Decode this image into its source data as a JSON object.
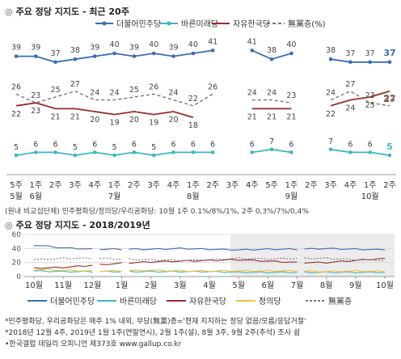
{
  "top": {
    "title_mark": "◎",
    "title": "주요 정당 지지도 - 최근 20주",
    "note": "(원내 비교섭단체) 민주평화당/정의당/우리공화당: 10월 1주 0.1%/8%/1%, 2주 0,3%/7%/0,4%",
    "x_week": [
      "5주",
      "1주",
      "2주",
      "3주",
      "4주",
      "1주",
      "2주",
      "3주",
      "4주",
      "1주",
      "2주",
      "3주",
      "4주",
      "5주",
      "1주",
      "2주",
      "3주",
      "4주",
      "1주",
      "2주"
    ],
    "x_month": [
      "5월",
      "6월",
      "",
      "",
      "",
      "7월",
      "",
      "",
      "",
      "8월",
      "",
      "",
      "",
      "",
      "9월",
      "",
      "",
      "",
      "10월",
      ""
    ]
  },
  "bottom": {
    "title_mark": "◎",
    "title": "주요 정당 지지도 - 2018/2019년",
    "y_ticks": [
      "0",
      "20",
      "40",
      "60"
    ],
    "x_ticks": [
      "10월",
      "11월",
      "12월",
      "1월",
      "2월",
      "3월",
      "4월",
      "5월",
      "6월",
      "7월",
      "8월",
      "9월",
      "10월"
    ],
    "legend": [
      "더불어민주당",
      "바른미래당",
      "자유한국당",
      "정의당",
      "無黨층"
    ]
  },
  "footnotes": [
    "*민주평화당, 우리공화당은 매주 1% 내외, 무당(無黨)층='현재 지지하는 정당 없음/모름/응답거절'",
    "*2018년 12월 4주, 2019년 1월 1주(연말연시), 2월 1주(설), 8월 3주, 9월 2주(추석) 조사 쉼",
    "•한국갤럽 데일리 오피니언 제373호 www.gallup.co.kr"
  ],
  "colors": {
    "democratic": "#3a6db3",
    "bareun": "#3fb6c2",
    "liberty": "#9c2b2b",
    "justice": "#f0c239",
    "none": "#777777"
  },
  "chart_data": [
    {
      "type": "line",
      "title": "주요 정당 지지도 - 최근 20주",
      "categories": [
        "5월 5주",
        "6월 1주",
        "2주",
        "3주",
        "4주",
        "7월 1주",
        "2주",
        "3주",
        "4주",
        "8월 1주",
        "2주",
        "3주",
        "4주",
        "5주",
        "9월 1주",
        "2주",
        "3주",
        "4주",
        "10월 1주",
        "2주"
      ],
      "ylim": [
        0,
        50
      ],
      "legend_position": "top-right",
      "series": [
        {
          "name": "더불어민주당",
          "values": [
            39,
            39,
            37,
            38,
            39,
            40,
            39,
            40,
            39,
            40,
            41,
            null,
            41,
            38,
            40,
            null,
            38,
            37,
            37,
            37
          ],
          "labels": [
            "39",
            "39",
            "37",
            "38",
            "39",
            "40",
            "39",
            "40",
            "39",
            "40",
            "41",
            "",
            "41",
            "38",
            "40",
            "",
            "38",
            "37",
            "37",
            "37"
          ]
        },
        {
          "name": "바른미래당",
          "values": [
            5,
            6,
            6,
            5,
            6,
            5,
            6,
            5,
            6,
            6,
            6,
            null,
            6,
            7,
            6,
            null,
            7,
            6,
            6,
            5
          ],
          "labels": [
            "5",
            "6",
            "6",
            "5",
            "6",
            "5",
            "6",
            "5",
            "6",
            "6",
            "6",
            "",
            "6",
            "7",
            "6",
            "",
            "7",
            "6",
            "6",
            "5"
          ]
        },
        {
          "name": "자유한국당",
          "values": [
            22,
            23,
            21,
            21,
            20,
            19,
            20,
            19,
            20,
            18,
            null,
            null,
            21,
            21,
            21,
            null,
            22,
            24,
            25,
            27
          ],
          "labels": [
            "22",
            "23",
            "21",
            "21",
            "20",
            "19",
            "20",
            "19",
            "20",
            "18",
            "",
            "",
            "21",
            "21",
            "21",
            "",
            "22",
            "24",
            "25",
            "27"
          ]
        },
        {
          "name": "無黨층(%)",
          "values": [
            26,
            23,
            25,
            27,
            24,
            24,
            25,
            26,
            24,
            22,
            26,
            null,
            24,
            24,
            23,
            null,
            24,
            27,
            23,
            22
          ],
          "labels": [
            "26",
            "23",
            "25",
            "27",
            "24",
            "24",
            "25",
            "26",
            "24",
            "22",
            "26",
            "",
            "24",
            "24",
            "23",
            "",
            "24",
            "27",
            "23",
            "22"
          ]
        }
      ]
    },
    {
      "type": "line",
      "title": "주요 정당 지지도 - 2018/2019년",
      "categories": [
        "10월",
        "11월",
        "12월",
        "1월",
        "2월",
        "3월",
        "4월",
        "5월",
        "6월",
        "7월",
        "8월",
        "9월",
        "10월"
      ],
      "ylim": [
        0,
        60
      ],
      "grid": true,
      "legend_position": "bottom",
      "series": [
        {
          "name": "더불어민주당",
          "values": [
            45,
            41,
            39,
            39,
            39,
            40,
            39,
            38,
            39,
            39,
            40,
            39,
            38
          ]
        },
        {
          "name": "바른미래당",
          "values": [
            8,
            7,
            7,
            7,
            7,
            7,
            7,
            6,
            6,
            6,
            6,
            6,
            6
          ]
        },
        {
          "name": "자유한국당",
          "values": [
            12,
            13,
            16,
            19,
            21,
            22,
            23,
            24,
            22,
            20,
            20,
            23,
            26
          ]
        },
        {
          "name": "정의당",
          "values": [
            10,
            9,
            8,
            8,
            9,
            8,
            8,
            8,
            8,
            8,
            7,
            8,
            7
          ]
        },
        {
          "name": "無黨층",
          "values": [
            24,
            26,
            26,
            25,
            24,
            23,
            24,
            26,
            25,
            26,
            26,
            24,
            23
          ]
        }
      ]
    }
  ]
}
